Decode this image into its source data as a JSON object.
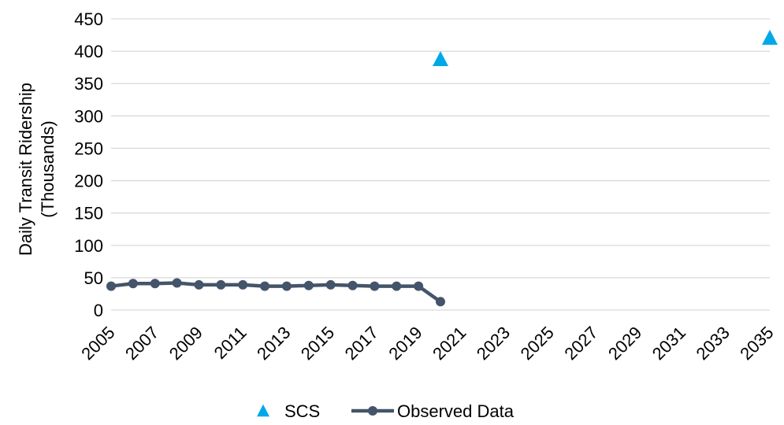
{
  "chart_data": {
    "type": "line",
    "ylabel": [
      "Daily Transit Ridership",
      "(Thousands)"
    ],
    "xlabel": "",
    "x_tick_labels": [
      "2005",
      "2007",
      "2009",
      "2011",
      "2013",
      "2015",
      "2017",
      "2019",
      "2021",
      "2023",
      "2025",
      "2027",
      "2029",
      "2031",
      "2033",
      "2035"
    ],
    "xlim": [
      2005,
      2035
    ],
    "ylim": [
      0,
      450
    ],
    "y_ticks": [
      0,
      50,
      100,
      150,
      200,
      250,
      300,
      350,
      400,
      450
    ],
    "grid": "horizontal",
    "legend_position": "bottom",
    "series": [
      {
        "name": "SCS",
        "marker": "triangle",
        "color": "#00A8E8",
        "line": false,
        "x": [
          2020,
          2035
        ],
        "values": [
          388,
          421
        ]
      },
      {
        "name": "Observed Data",
        "marker": "circle",
        "color": "#44546A",
        "line": true,
        "x": [
          2005,
          2006,
          2007,
          2008,
          2009,
          2010,
          2011,
          2012,
          2013,
          2014,
          2015,
          2016,
          2017,
          2018,
          2019,
          2020
        ],
        "values": [
          37,
          41,
          41,
          42,
          39,
          39,
          39,
          37,
          37,
          38,
          39,
          38,
          37,
          37,
          37,
          13
        ]
      }
    ]
  }
}
